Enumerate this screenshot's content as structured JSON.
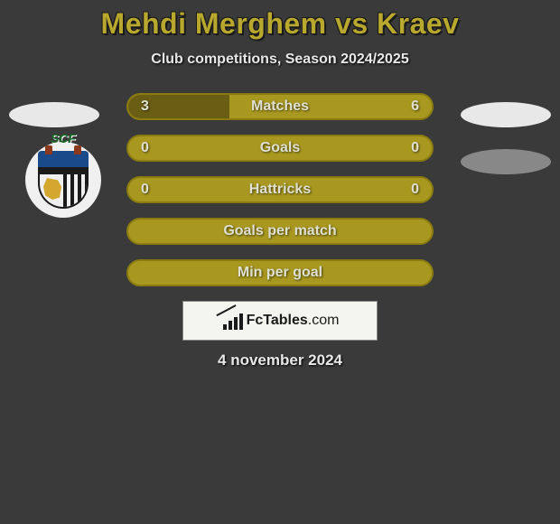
{
  "title": "Mehdi Merghem vs Kraev",
  "subtitle": "Club competitions, Season 2024/2025",
  "date": "4 november 2024",
  "brand": {
    "name_bold": "FcTables",
    "name_light": ".com"
  },
  "colors": {
    "background": "#3a3a3a",
    "accent": "#a89820",
    "accent_border": "#8a7a10",
    "bar_dark": "#6a5e14",
    "title_color": "#b8a82e",
    "text_light": "#e8e8e8"
  },
  "stats": [
    {
      "label": "Matches",
      "left_value": "3",
      "right_value": "6",
      "left_pct": 33.3,
      "right_pct": 66.7,
      "left_fill": "#6a5e14",
      "right_fill": "#a89820",
      "bg": "#a89820",
      "border": "#8a7a10"
    },
    {
      "label": "Goals",
      "left_value": "0",
      "right_value": "0",
      "left_pct": 0,
      "right_pct": 0,
      "left_fill": "#6a5e14",
      "right_fill": "#a89820",
      "bg": "#a89820",
      "border": "#8a7a10"
    },
    {
      "label": "Hattricks",
      "left_value": "0",
      "right_value": "0",
      "left_pct": 0,
      "right_pct": 0,
      "left_fill": "#6a5e14",
      "right_fill": "#a89820",
      "bg": "#a89820",
      "border": "#8a7a10"
    },
    {
      "label": "Goals per match",
      "left_value": "",
      "right_value": "",
      "left_pct": 0,
      "right_pct": 0,
      "left_fill": "#6a5e14",
      "right_fill": "#a89820",
      "bg": "#a89820",
      "border": "#8a7a10"
    },
    {
      "label": "Min per goal",
      "left_value": "",
      "right_value": "",
      "left_pct": 0,
      "right_pct": 0,
      "left_fill": "#6a5e14",
      "right_fill": "#a89820",
      "bg": "#a89820",
      "border": "#8a7a10"
    }
  ],
  "club_badge": {
    "initials": "SCF"
  }
}
